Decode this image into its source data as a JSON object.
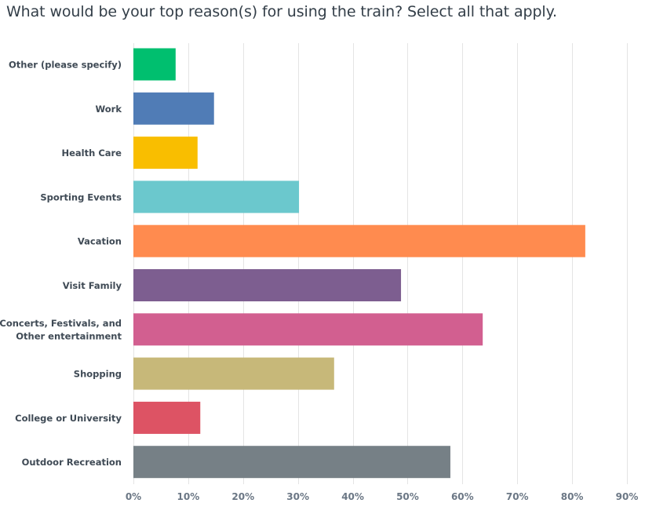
{
  "chart_data": {
    "type": "bar",
    "orientation": "horizontal",
    "title": "What would be your top reason(s) for using the train? Select all that apply.",
    "xlabel": "",
    "ylabel": "",
    "categories": [
      "Other (please specify)",
      "Work",
      "Health Care",
      "Sporting Events",
      "Vacation",
      "Visit Family",
      "Concerts, Festivals, and Other entertainment",
      "Shopping",
      "College or University",
      "Outdoor Recreation"
    ],
    "category_lines": [
      [
        "Other (please specify)"
      ],
      [
        "Work"
      ],
      [
        "Health Care"
      ],
      [
        "Sporting Events"
      ],
      [
        "Vacation"
      ],
      [
        "Visit Family"
      ],
      [
        "Concerts, Festivals, and",
        "Other entertainment"
      ],
      [
        "Shopping"
      ],
      [
        "College or University"
      ],
      [
        "Outdoor Recreation"
      ]
    ],
    "values": [
      7.7,
      14.7,
      11.7,
      30.2,
      82.4,
      48.8,
      63.7,
      36.6,
      12.2,
      57.8
    ],
    "colors": [
      "#00bf6f",
      "#507cb6",
      "#f9be00",
      "#6bc8cd",
      "#ff8b4f",
      "#7d5e90",
      "#d25f90",
      "#c7b879",
      "#dd5364",
      "#768086"
    ],
    "xlim": [
      0,
      90
    ],
    "ticks": [
      0,
      10,
      20,
      30,
      40,
      50,
      60,
      70,
      80,
      90
    ],
    "tick_labels": [
      "0%",
      "10%",
      "20%",
      "30%",
      "40%",
      "50%",
      "60%",
      "70%",
      "80%",
      "90%"
    ],
    "grid": true,
    "legend": "none"
  }
}
